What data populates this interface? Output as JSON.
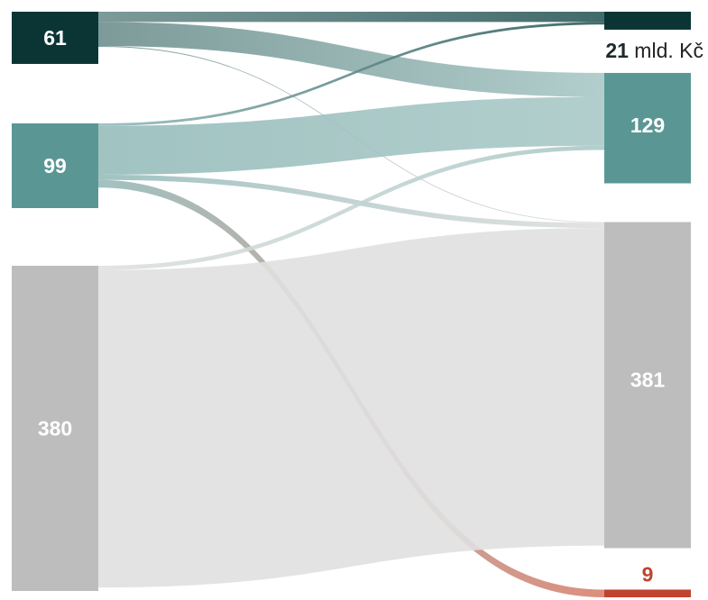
{
  "chart_data": {
    "type": "sankey",
    "unit": "mld. Kč",
    "sources": [
      {
        "id": "s1",
        "value": 61,
        "label": "61",
        "color": "#0b3535"
      },
      {
        "id": "s2",
        "value": 99,
        "label": "99",
        "color": "#5a9794"
      },
      {
        "id": "s3",
        "value": 380,
        "label": "380",
        "color": "#bdbdbd"
      }
    ],
    "targets": [
      {
        "id": "t1",
        "value": 21,
        "label": "21",
        "unit": "mld. Kč",
        "color": "#0b3535"
      },
      {
        "id": "t2",
        "value": 129,
        "label": "129",
        "color": "#5a9794"
      },
      {
        "id": "t3",
        "value": 381,
        "label": "381",
        "color": "#bdbdbd"
      },
      {
        "id": "t4",
        "value": 9,
        "label": "9",
        "color": "#c0442f"
      }
    ],
    "flows": [
      {
        "source": "s1",
        "target": "t1",
        "value": 12
      },
      {
        "source": "s1",
        "target": "t2",
        "value": 28
      },
      {
        "source": "s1",
        "target": "t3",
        "value": 1
      },
      {
        "source": "s2",
        "target": "t1",
        "value": 3
      },
      {
        "source": "s2",
        "target": "t2",
        "value": 57
      },
      {
        "source": "s2",
        "target": "t3",
        "value": 6
      },
      {
        "source": "s2",
        "target": "t4",
        "value": 9
      },
      {
        "source": "s3",
        "target": "t2",
        "value": 5
      },
      {
        "source": "s3",
        "target": "t3",
        "value": 371
      }
    ]
  }
}
